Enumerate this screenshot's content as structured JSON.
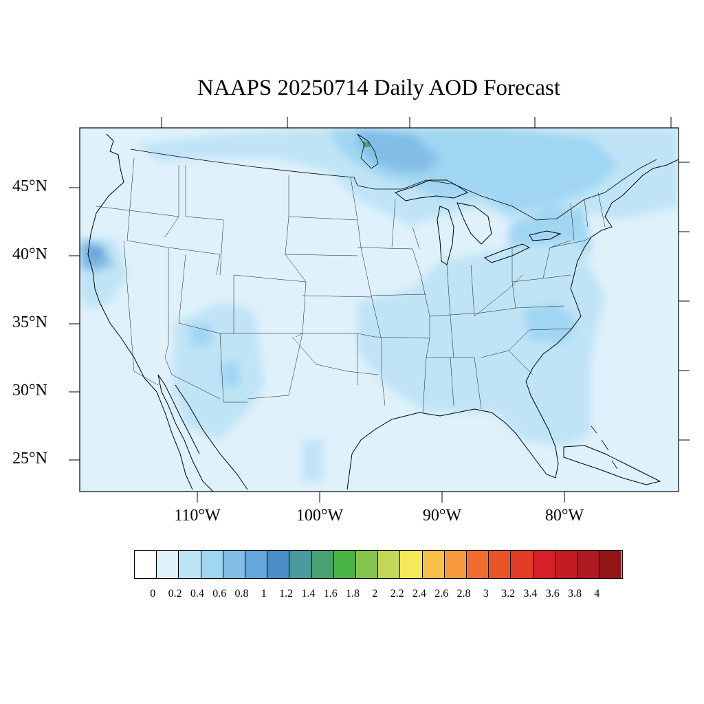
{
  "title": "NAAPS 20250714 Daily AOD Forecast",
  "lat_labels": [
    "45°N",
    "40°N",
    "35°N",
    "30°N",
    "25°N"
  ],
  "lon_labels": [
    "110°W",
    "100°W",
    "90°W",
    "80°W"
  ],
  "colorbar": {
    "labels": [
      "0",
      "0.2",
      "0.4",
      "0.6",
      "0.8",
      "1",
      "1.2",
      "1.4",
      "1.6",
      "1.8",
      "2",
      "2.2",
      "2.4",
      "2.6",
      "2.8",
      "3",
      "3.2",
      "3.4",
      "3.6",
      "3.8",
      "4"
    ],
    "colors": [
      "#ffffff",
      "#dff1fb",
      "#bfe4f6",
      "#a0d6f2",
      "#82bde6",
      "#66a7db",
      "#4b8ec8",
      "#4b9a9e",
      "#47a472",
      "#4bb446",
      "#86c54c",
      "#c3d655",
      "#f7e85a",
      "#f7c048",
      "#f69a3d",
      "#f26c2d",
      "#ea5228",
      "#e13b26",
      "#d61f26",
      "#c21d24",
      "#ad1a22",
      "#921518"
    ]
  },
  "map": {
    "region": "Contiguous United States",
    "background_color": "#dff1fb",
    "features": [
      "coastlines",
      "state-borders",
      "country-borders",
      "great-lakes"
    ],
    "aod_hotspots": [
      {
        "name": "northern-california",
        "lat": 40.5,
        "lon": -123.5,
        "aod": 0.9
      },
      {
        "name": "lake-superior-north",
        "lat": 48.5,
        "lon": -96.0,
        "aod": 1.3
      },
      {
        "name": "arizona",
        "lat": 34.0,
        "lon": -111.0,
        "aod": 0.7
      },
      {
        "name": "new-mexico",
        "lat": 32.0,
        "lon": -107.0,
        "aod": 0.7
      }
    ]
  }
}
